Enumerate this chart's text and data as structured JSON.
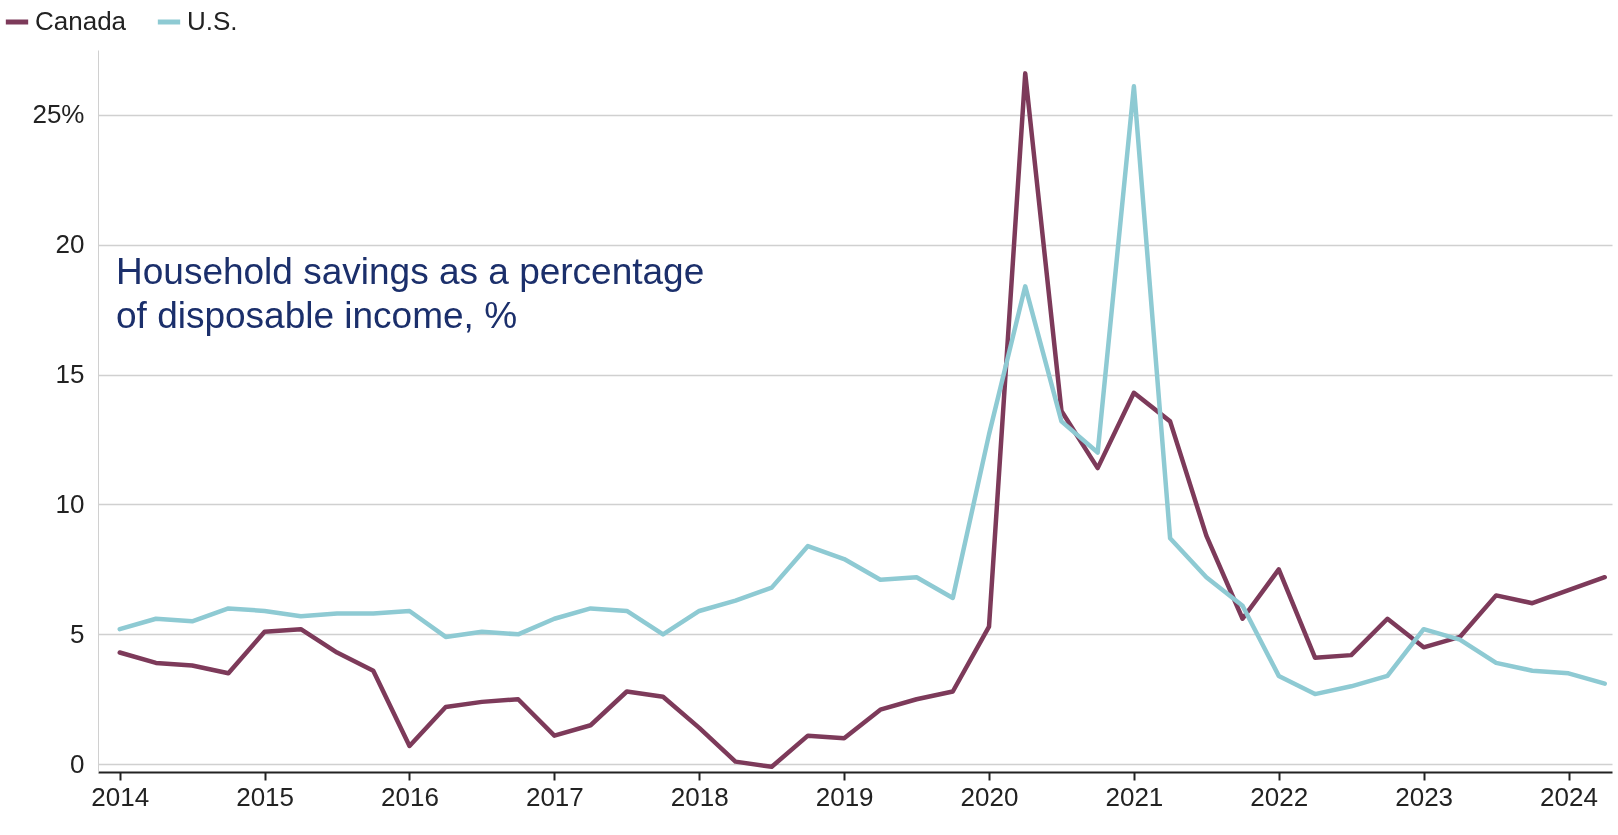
{
  "chart_data": {
    "type": "line",
    "x": [
      2014,
      2014.25,
      2014.5,
      2014.75,
      2015,
      2015.25,
      2015.5,
      2015.75,
      2016,
      2016.25,
      2016.5,
      2016.75,
      2017,
      2017.25,
      2017.5,
      2017.75,
      2018,
      2018.25,
      2018.5,
      2018.75,
      2019,
      2019.25,
      2019.5,
      2019.75,
      2020,
      2020.25,
      2020.5,
      2020.75,
      2021,
      2021.25,
      2021.5,
      2021.75,
      2022,
      2022.25,
      2022.5,
      2022.75,
      2023,
      2023.25,
      2023.5,
      2023.75,
      2024,
      2024.25
    ],
    "series": [
      {
        "name": "Canada",
        "color": "#7d3a5a",
        "values": [
          4.3,
          3.9,
          3.8,
          3.5,
          5.1,
          5.2,
          4.3,
          3.6,
          0.7,
          2.2,
          2.4,
          2.5,
          1.1,
          1.5,
          2.8,
          2.6,
          1.4,
          0.1,
          -0.1,
          1.1,
          1.0,
          2.1,
          2.5,
          2.8,
          5.3,
          26.6,
          13.6,
          11.4,
          14.3,
          13.2,
          8.8,
          5.6,
          7.5,
          4.1,
          4.2,
          5.6,
          4.5,
          4.9,
          6.5,
          6.2,
          6.7,
          7.2
        ]
      },
      {
        "name": "U.S.",
        "color": "#8ecad3",
        "values": [
          5.2,
          5.6,
          5.5,
          6.0,
          5.9,
          5.7,
          5.8,
          5.8,
          5.9,
          4.9,
          5.1,
          5.0,
          5.6,
          6.0,
          5.9,
          5.0,
          5.9,
          6.3,
          6.8,
          8.4,
          7.9,
          7.1,
          7.2,
          6.4,
          12.7,
          18.4,
          13.2,
          12.0,
          26.1,
          8.7,
          7.2,
          6.1,
          3.4,
          2.7,
          3.0,
          3.4,
          5.2,
          4.8,
          3.9,
          3.6,
          3.5,
          3.1
        ]
      }
    ],
    "xlim": [
      2013.85,
      2024.3
    ],
    "xticks": [
      2014,
      2015,
      2016,
      2017,
      2018,
      2019,
      2020,
      2021,
      2022,
      2023,
      2024
    ],
    "ylim": [
      -0.3,
      27.5
    ],
    "yticks": [
      0,
      5,
      10,
      15,
      20,
      {
        "value": 25,
        "label": "25%"
      }
    ],
    "grid": "y",
    "legend": "top left",
    "annotations": [
      "Household savings as a percentage of disposable income, %"
    ]
  }
}
